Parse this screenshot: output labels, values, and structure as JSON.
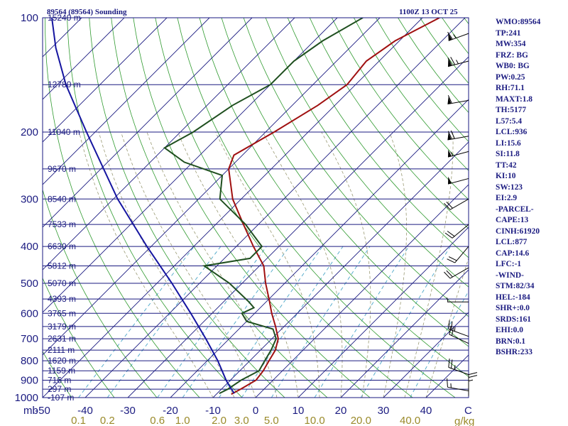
{
  "header": {
    "station": "89564 (89564) Sounding",
    "time": "1100Z 13 OCT 25"
  },
  "indices": [
    "WMO:89564",
    "TP:241",
    "MW:354",
    "FRZ: BG",
    "WB0: BG",
    "PW:0.25",
    "RH:71.1",
    "MAXT:1.8",
    "TH:5177",
    "L57:5.4",
    "LCL:936",
    "LI:15.6",
    "SI:11.8",
    "TT:42",
    "KI:10",
    "SW:123",
    "EI:2.9",
    "-PARCEL-",
    "CAPE:13",
    "CINH:61920",
    "LCL:877",
    "CAP:14.6",
    "LFC:-1",
    "-WIND-",
    "STM:82/34",
    "HEL:-184",
    "SHR+:0.0",
    "SRDS:161",
    "EHI:0.0",
    "BRN:0.1",
    "BSHR:233"
  ],
  "axes": {
    "pressure_unit": "mb",
    "temp_unit": "C",
    "mixing_unit": "g/kg"
  },
  "colors": {
    "frame": "#1a1a80",
    "isobar": "#1a1a80",
    "isotherm": "#1a1a80",
    "dry_adiabat": "#2f9a2f",
    "moist_adiabat": "#9a9a74",
    "mixing_ratio": "#4aa6c8",
    "temperature": "#a01010",
    "dewpoint": "#1f4f1f",
    "parcel": "#1515a0",
    "label_blue": "#1a1a80",
    "label_olive": "#9a8a2a"
  },
  "chart_data": {
    "type": "skew-t log-p",
    "title": "89564 (89564) Sounding",
    "plim": [
      1000,
      100
    ],
    "tlim": [
      -50,
      50
    ],
    "pressure_ticks": [
      {
        "p": 100,
        "label": "100"
      },
      {
        "p": 200,
        "label": "200"
      },
      {
        "p": 300,
        "label": "300"
      },
      {
        "p": 400,
        "label": "400"
      },
      {
        "p": 500,
        "label": "500"
      },
      {
        "p": 600,
        "label": "600"
      },
      {
        "p": 700,
        "label": "700"
      },
      {
        "p": 800,
        "label": "800"
      },
      {
        "p": 900,
        "label": "900"
      },
      {
        "p": 1000,
        "label": "1000"
      }
    ],
    "height_levels": [
      {
        "p": 100,
        "label": "15240 m"
      },
      {
        "p": 150,
        "label": "12780 m"
      },
      {
        "p": 200,
        "label": "11040 m"
      },
      {
        "p": 250,
        "label": "9670 m"
      },
      {
        "p": 300,
        "label": "8540 m"
      },
      {
        "p": 350,
        "label": "7533 m"
      },
      {
        "p": 400,
        "label": "6630 m"
      },
      {
        "p": 450,
        "label": "5812 m"
      },
      {
        "p": 500,
        "label": "5070 m"
      },
      {
        "p": 550,
        "label": "4393 m"
      },
      {
        "p": 600,
        "label": "3765 m"
      },
      {
        "p": 650,
        "label": "3179 m"
      },
      {
        "p": 700,
        "label": "2631 m"
      },
      {
        "p": 750,
        "label": "2111 m"
      },
      {
        "p": 800,
        "label": "1620 m"
      },
      {
        "p": 850,
        "label": "1159 m"
      },
      {
        "p": 900,
        "label": "716 m"
      },
      {
        "p": 950,
        "label": "297 m"
      },
      {
        "p": 1000,
        "label": "-107 m"
      }
    ],
    "temp_ticks": [
      -50,
      -40,
      -30,
      -20,
      -10,
      0,
      10,
      20,
      30,
      40
    ],
    "mixing_ratio_ticks": [
      {
        "w": 0.1,
        "label": "0.1"
      },
      {
        "w": 0.2,
        "label": "0.2"
      },
      {
        "w": 0.6,
        "label": "0.6"
      },
      {
        "w": 1.0,
        "label": "1.0"
      },
      {
        "w": 2.0,
        "label": "2.0"
      },
      {
        "w": 3.0,
        "label": "3.0"
      },
      {
        "w": 5.0,
        "label": "5.0"
      },
      {
        "w": 10.0,
        "label": "10.0"
      },
      {
        "w": 20.0,
        "label": "20.0"
      },
      {
        "w": 40.0,
        "label": "40.0"
      }
    ],
    "series": [
      {
        "name": "Temperature",
        "points": [
          {
            "p": 980,
            "t": -6.5
          },
          {
            "p": 950,
            "t": -5.5
          },
          {
            "p": 900,
            "t": -4.0
          },
          {
            "p": 850,
            "t": -4.5
          },
          {
            "p": 800,
            "t": -5.5
          },
          {
            "p": 750,
            "t": -6.5
          },
          {
            "p": 700,
            "t": -8.5
          },
          {
            "p": 650,
            "t": -12.0
          },
          {
            "p": 600,
            "t": -16.0
          },
          {
            "p": 550,
            "t": -20.0
          },
          {
            "p": 500,
            "t": -24.5
          },
          {
            "p": 450,
            "t": -29.0
          },
          {
            "p": 400,
            "t": -36.0
          },
          {
            "p": 350,
            "t": -43.5
          },
          {
            "p": 300,
            "t": -52.0
          },
          {
            "p": 250,
            "t": -60.0
          },
          {
            "p": 230,
            "t": -62.0
          },
          {
            "p": 200,
            "t": -58.0
          },
          {
            "p": 170,
            "t": -54.0
          },
          {
            "p": 150,
            "t": -52.0
          },
          {
            "p": 130,
            "t": -53.0
          },
          {
            "p": 115,
            "t": -51.0
          },
          {
            "p": 100,
            "t": -46.0
          }
        ]
      },
      {
        "name": "Dewpoint",
        "points": [
          {
            "p": 975,
            "t": -9.5
          },
          {
            "p": 950,
            "t": -8.5
          },
          {
            "p": 900,
            "t": -7.5
          },
          {
            "p": 850,
            "t": -5.5
          },
          {
            "p": 800,
            "t": -6.5
          },
          {
            "p": 750,
            "t": -7.5
          },
          {
            "p": 700,
            "t": -9.0
          },
          {
            "p": 660,
            "t": -12.0
          },
          {
            "p": 630,
            "t": -20.0
          },
          {
            "p": 600,
            "t": -23.0
          },
          {
            "p": 580,
            "t": -21.5
          },
          {
            "p": 560,
            "t": -24.0
          },
          {
            "p": 500,
            "t": -33.0
          },
          {
            "p": 450,
            "t": -43.0
          },
          {
            "p": 430,
            "t": -34.0
          },
          {
            "p": 400,
            "t": -34.0
          },
          {
            "p": 350,
            "t": -43.0
          },
          {
            "p": 300,
            "t": -55.0
          },
          {
            "p": 260,
            "t": -60.0
          },
          {
            "p": 240,
            "t": -72.0
          },
          {
            "p": 220,
            "t": -80.0
          },
          {
            "p": 200,
            "t": -77.0
          },
          {
            "p": 170,
            "t": -74.0
          },
          {
            "p": 150,
            "t": -70.0
          },
          {
            "p": 130,
            "t": -70.0
          },
          {
            "p": 115,
            "t": -68.0
          },
          {
            "p": 100,
            "t": -64.0
          }
        ]
      },
      {
        "name": "Parcel",
        "points": [
          {
            "p": 975,
            "t": -6.0
          },
          {
            "p": 930,
            "t": -9.0
          },
          {
            "p": 900,
            "t": -11.0
          },
          {
            "p": 800,
            "t": -17.5
          },
          {
            "p": 700,
            "t": -25.5
          },
          {
            "p": 600,
            "t": -35.0
          },
          {
            "p": 500,
            "t": -46.5
          },
          {
            "p": 400,
            "t": -61.0
          },
          {
            "p": 300,
            "t": -79.0
          },
          {
            "p": 200,
            "t": -102.0
          },
          {
            "p": 150,
            "t": -118.0
          },
          {
            "p": 120,
            "t": -129.0
          },
          {
            "p": 100,
            "t": -137.0
          }
        ]
      }
    ],
    "wind_barbs": [
      {
        "p": 110,
        "dir": 250,
        "speed": 65
      },
      {
        "p": 130,
        "dir": 255,
        "speed": 75
      },
      {
        "p": 165,
        "dir": 260,
        "speed": 60
      },
      {
        "p": 205,
        "dir": 260,
        "speed": 70
      },
      {
        "p": 225,
        "dir": 255,
        "speed": 55
      },
      {
        "p": 265,
        "dir": 255,
        "speed": 50
      },
      {
        "p": 300,
        "dir": 240,
        "speed": 20
      },
      {
        "p": 350,
        "dir": 230,
        "speed": 20
      },
      {
        "p": 400,
        "dir": 220,
        "speed": 20
      },
      {
        "p": 455,
        "dir": 240,
        "speed": 20
      },
      {
        "p": 560,
        "dir": 270,
        "speed": 5
      },
      {
        "p": 690,
        "dir": 290,
        "speed": 25
      },
      {
        "p": 720,
        "dir": 295,
        "speed": 20
      },
      {
        "p": 870,
        "dir": 290,
        "speed": 25
      },
      {
        "p": 960,
        "dir": 280,
        "speed": 15
      },
      {
        "p": 990,
        "dir": 0,
        "speed": 25
      }
    ]
  }
}
